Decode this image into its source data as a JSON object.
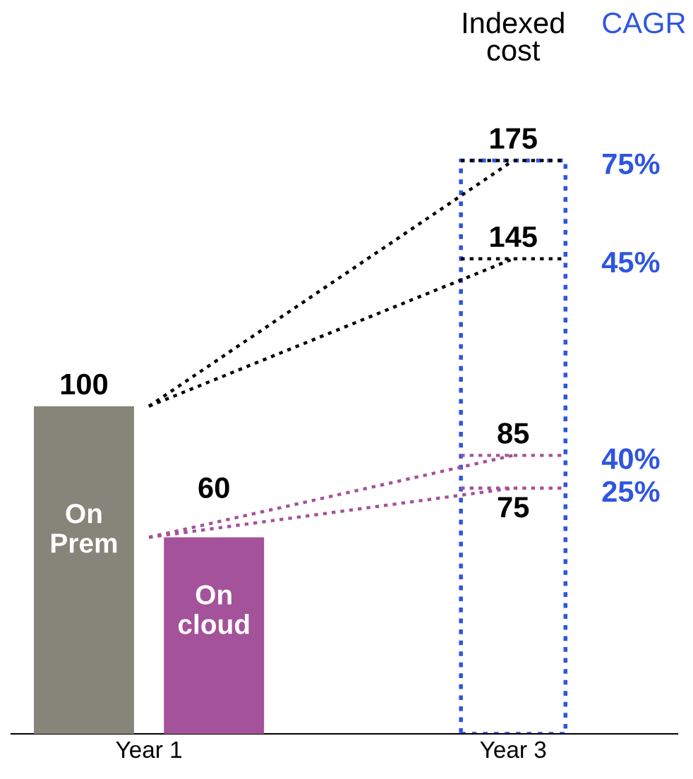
{
  "chart_data": {
    "type": "bar",
    "categories": [
      "Year 1",
      "Year 3"
    ],
    "tick_labels": "x",
    "marker": "none",
    "annotations": [
      "Indexed\ncost",
      "CAGR",
      "75%",
      "45%",
      "40%",
      "25%"
    ],
    "series": [
      {
        "name": "On Prem",
        "color": "#85857a",
        "values": [
          100,
          null
        ],
        "value_labels": [
          "100",
          null
        ]
      },
      {
        "name": "On cloud",
        "color": "#a4529a",
        "values": [
          60,
          null
        ],
        "value_labels": [
          "60",
          null
        ]
      },
      {
        "color": "#2f55e0",
        "values": [
          null,
          175
        ],
        "line_style": "dotted"
      },
      {
        "type": "line",
        "color": "#000000",
        "line_style": "dotted",
        "values": [
          100,
          175
        ],
        "value_labels": [
          null,
          "175"
        ]
      },
      {
        "type": "line",
        "color": "#000000",
        "line_style": "dotted",
        "values": [
          100,
          145
        ],
        "value_labels": [
          null,
          "145"
        ]
      },
      {
        "type": "line",
        "color": "#a4529a",
        "line_style": "dotted",
        "values": [
          60,
          85
        ],
        "value_labels": [
          null,
          "85"
        ]
      },
      {
        "type": "line",
        "color": "#a4529a",
        "line_style": "dotted",
        "values": [
          60,
          75
        ],
        "value_labels": [
          null,
          "75"
        ]
      }
    ]
  }
}
